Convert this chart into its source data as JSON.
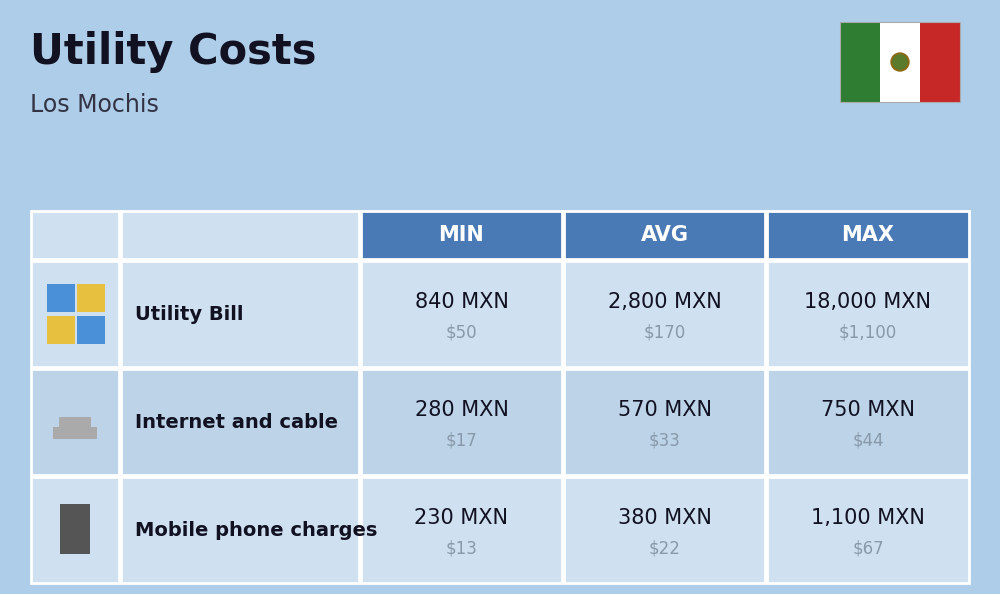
{
  "title": "Utility Costs",
  "subtitle": "Los Mochis",
  "background_color": "#aecde8",
  "header_bg_color": "#4a7ab5",
  "header_text_color": "#ffffff",
  "row_bg_color_odd": "#cfe0f0",
  "row_bg_color_even": "#bdd3e8",
  "table_border_color": "#ffffff",
  "col_headers": [
    "MIN",
    "AVG",
    "MAX"
  ],
  "rows": [
    {
      "label": "Utility Bill",
      "min_mxn": "840 MXN",
      "min_usd": "$50",
      "avg_mxn": "2,800 MXN",
      "avg_usd": "$170",
      "max_mxn": "18,000 MXN",
      "max_usd": "$1,100"
    },
    {
      "label": "Internet and cable",
      "min_mxn": "280 MXN",
      "min_usd": "$17",
      "avg_mxn": "570 MXN",
      "avg_usd": "$33",
      "max_mxn": "750 MXN",
      "max_usd": "$44"
    },
    {
      "label": "Mobile phone charges",
      "min_mxn": "230 MXN",
      "min_usd": "$13",
      "avg_mxn": "380 MXN",
      "avg_usd": "$22",
      "max_mxn": "1,100 MXN",
      "max_usd": "$67"
    }
  ],
  "flag_colors": [
    "#2e7d32",
    "#ffffff",
    "#c62828"
  ],
  "usd_text_color": "#8899aa",
  "mxn_text_color": "#111122",
  "label_text_color": "#111122",
  "title_color": "#111122",
  "subtitle_color": "#333344"
}
